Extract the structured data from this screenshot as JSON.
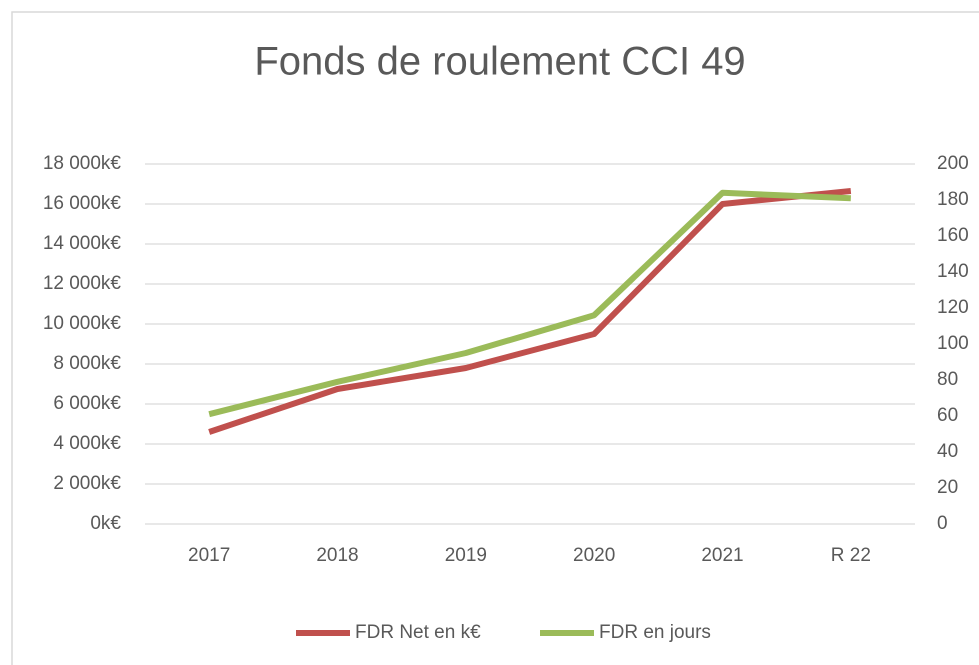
{
  "chart_data": {
    "type": "line",
    "title": "Fonds de roulement CCI 49",
    "categories": [
      "2017",
      "2018",
      "2019",
      "2020",
      "2021",
      "R 22"
    ],
    "series": [
      {
        "name": "FDR Net en k€",
        "color": "#c0504d",
        "values": [
          4600,
          6750,
          7800,
          9500,
          16000,
          16650
        ]
      },
      {
        "name": "FDR en jours",
        "color": "#9bbb59",
        "axis": "y2",
        "values": [
          61,
          79,
          95,
          116,
          184,
          181
        ]
      }
    ],
    "ylim": [
      0,
      18000
    ],
    "yticks": [
      {
        "value": 0,
        "label": "0k€"
      },
      {
        "value": 2000,
        "label": "2 000k€"
      },
      {
        "value": 4000,
        "label": "4 000k€"
      },
      {
        "value": 6000,
        "label": "6 000k€"
      },
      {
        "value": 8000,
        "label": "8 000k€"
      },
      {
        "value": 10000,
        "label": "10 000k€"
      },
      {
        "value": 12000,
        "label": "12 000k€"
      },
      {
        "value": 14000,
        "label": "14 000k€"
      },
      {
        "value": 16000,
        "label": "16 000k€"
      },
      {
        "value": 18000,
        "label": "18 000k€"
      }
    ],
    "y2lim": [
      0,
      200
    ],
    "y2ticks": [
      0,
      20,
      40,
      60,
      80,
      100,
      120,
      140,
      160,
      180,
      200
    ],
    "grid": true,
    "legend": "bottom"
  }
}
